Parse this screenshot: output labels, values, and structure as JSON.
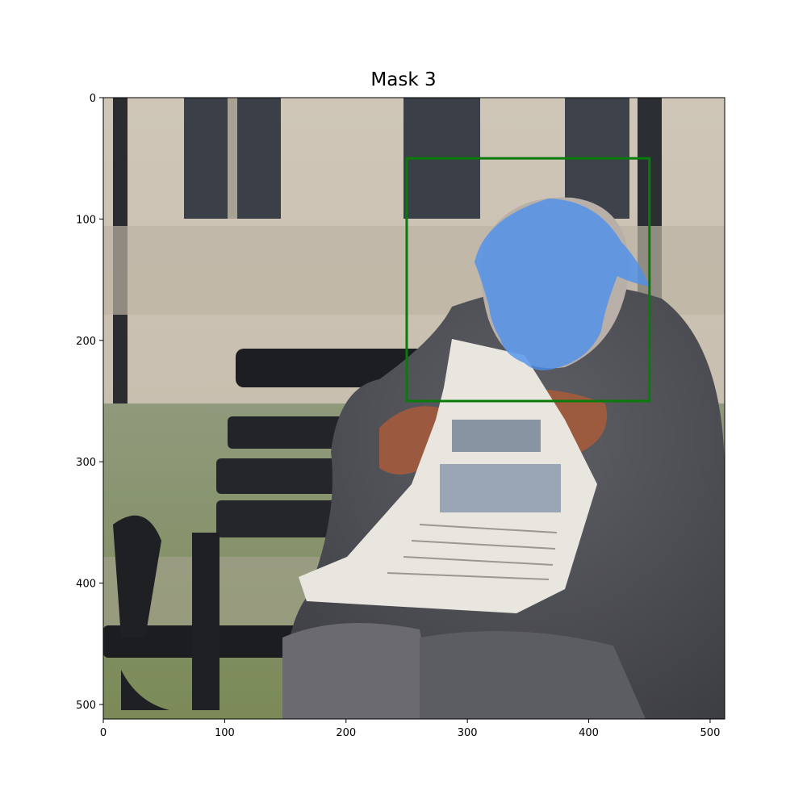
{
  "figure": {
    "title": "Mask 3"
  },
  "image_extent": {
    "width": 512,
    "height": 512
  },
  "axes": {
    "x": {
      "ticks": [
        0,
        100,
        200,
        300,
        400,
        500
      ],
      "range": [
        0,
        512
      ]
    },
    "y": {
      "ticks": [
        0,
        100,
        200,
        300,
        400,
        500
      ],
      "range": [
        0,
        512
      ]
    }
  },
  "bounding_box": {
    "x0": 250,
    "y0": 50,
    "x1": 450,
    "y1": 250,
    "color": "#0a7a0a"
  },
  "mask": {
    "color": "#4a90ee",
    "region": "head of the elderly man"
  },
  "scene": {
    "description_icons": [
      "man-figure-icon",
      "newspaper-icon",
      "bench-icon",
      "building-window-icon"
    ]
  }
}
